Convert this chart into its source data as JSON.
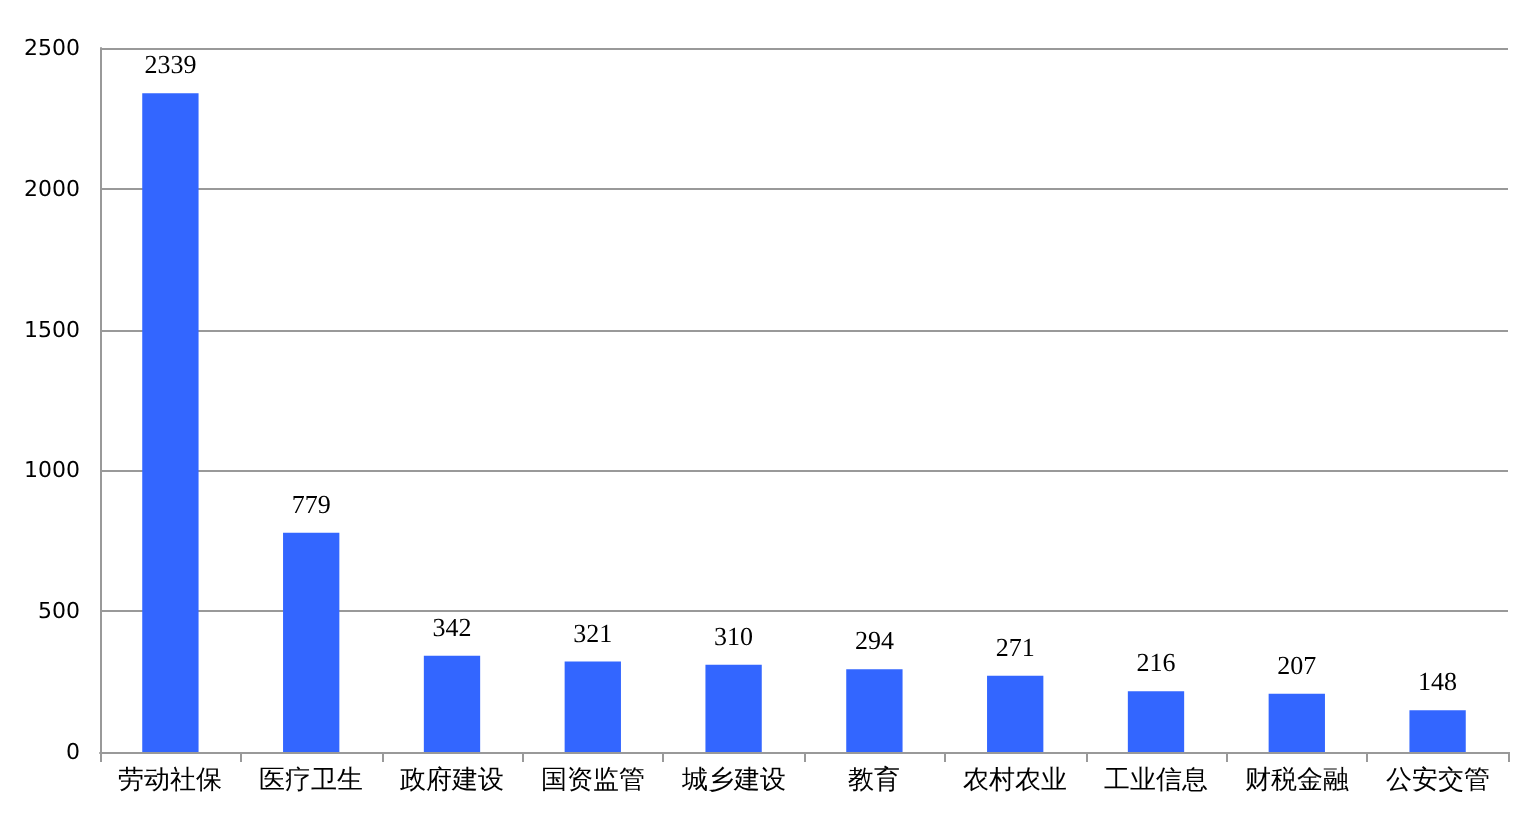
{
  "chart_data": {
    "type": "bar",
    "categories": [
      "劳动社保",
      "医疗卫生",
      "政府建设",
      "国资监管",
      "城乡建设",
      "教育",
      "农村农业",
      "工业信息",
      "财税金融",
      "公安交管"
    ],
    "values": [
      2339,
      779,
      342,
      321,
      310,
      294,
      271,
      216,
      207,
      148
    ],
    "color": "#3366ff",
    "ylim": [
      0,
      2500
    ],
    "yticks": [
      0,
      500,
      1000,
      1500,
      2000,
      2500
    ],
    "grid": "y",
    "data_labels": true
  }
}
